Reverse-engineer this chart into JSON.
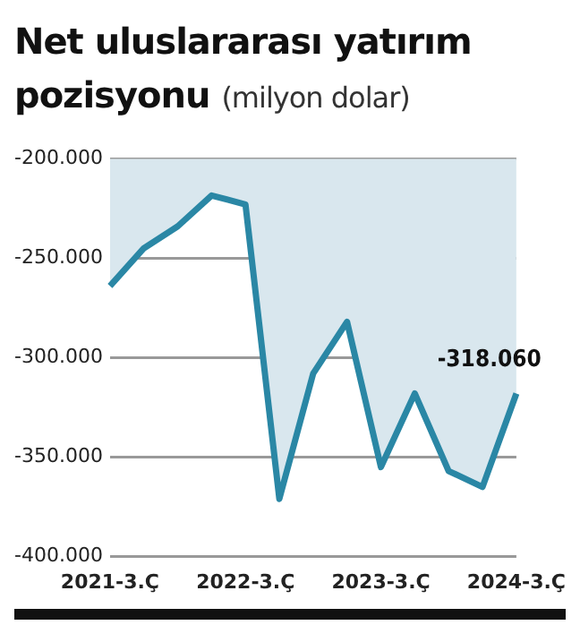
{
  "chart_data": {
    "type": "area",
    "title": "Net uluslararası yatırım pozisyonu",
    "subtitle": "(milyon dolar)",
    "categories": [
      "2021-3.Ç",
      null,
      null,
      null,
      "2022-3.Ç",
      null,
      null,
      null,
      "2023-3.Ç",
      null,
      null,
      null,
      "2024-3.Ç"
    ],
    "series": [
      {
        "color": "#2a87a5",
        "values": [
          -264000,
          -245000,
          -234000,
          -218500,
          -223000,
          -371000,
          -308000,
          -282000,
          -355000,
          -318000,
          -357000,
          -365000,
          -318060
        ],
        "value_labels": [
          null,
          null,
          null,
          null,
          null,
          null,
          null,
          null,
          null,
          null,
          null,
          null,
          "-318.060"
        ]
      }
    ],
    "ylim": [
      -400000,
      -200000
    ],
    "yticks": [
      {
        "value": -400000,
        "label": "-400.000"
      },
      {
        "value": -350000,
        "label": "-350.000"
      },
      {
        "value": -300000,
        "label": "-300.000"
      },
      {
        "value": -250000,
        "label": "-250.000"
      },
      {
        "value": -200000,
        "label": "-200.000"
      }
    ],
    "grid": "y",
    "legend": false
  }
}
